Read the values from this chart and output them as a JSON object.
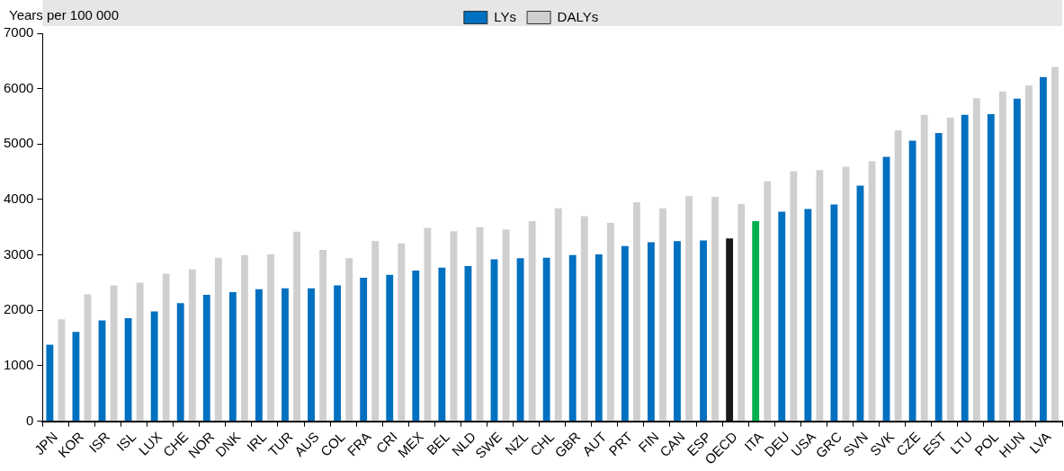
{
  "chart_data": {
    "type": "bar",
    "ylabel": "Years per 100 000",
    "categories": [
      "JPN",
      "KOR",
      "ISR",
      "ISL",
      "LUX",
      "CHE",
      "NOR",
      "DNK",
      "IRL",
      "TUR",
      "AUS",
      "COL",
      "FRA",
      "CRI",
      "MEX",
      "BEL",
      "NLD",
      "SWE",
      "NZL",
      "CHL",
      "GBR",
      "AUT",
      "PRT",
      "FIN",
      "CAN",
      "ESP",
      "OECD",
      "ITA",
      "DEU",
      "USA",
      "GRC",
      "SVN",
      "SVK",
      "CZE",
      "EST",
      "LTU",
      "POL",
      "HUN",
      "LVA"
    ],
    "series": [
      {
        "name": "LYs",
        "color": "#0070c0",
        "colors": [
          "#0070c0",
          "#0070c0",
          "#0070c0",
          "#0070c0",
          "#0070c0",
          "#0070c0",
          "#0070c0",
          "#0070c0",
          "#0070c0",
          "#0070c0",
          "#0070c0",
          "#0070c0",
          "#0070c0",
          "#0070c0",
          "#0070c0",
          "#0070c0",
          "#0070c0",
          "#0070c0",
          "#0070c0",
          "#0070c0",
          "#0070c0",
          "#0070c0",
          "#0070c0",
          "#0070c0",
          "#0070c0",
          "#0070c0",
          "#1a1a1a",
          "#00b050",
          "#0070c0",
          "#0070c0",
          "#0070c0",
          "#0070c0",
          "#0070c0",
          "#0070c0",
          "#0070c0",
          "#0070c0",
          "#0070c0",
          "#0070c0",
          "#0070c0"
        ],
        "values": [
          1380,
          1610,
          1820,
          1860,
          1980,
          2130,
          2280,
          2330,
          2380,
          2400,
          2400,
          2450,
          2590,
          2640,
          2720,
          2770,
          2800,
          2920,
          2940,
          2950,
          3000,
          3010,
          3160,
          3230,
          3250,
          3260,
          3300,
          3610,
          3780,
          3830,
          3910,
          4250,
          4770,
          5060,
          5200,
          5530,
          5540,
          5820,
          6210
        ]
      },
      {
        "name": "DALYs",
        "color": "#d0cfd0",
        "values": [
          1840,
          2290,
          2450,
          2500,
          2660,
          2740,
          2950,
          3000,
          3010,
          3420,
          3090,
          2940,
          3250,
          3210,
          3490,
          3430,
          3500,
          3460,
          3610,
          3840,
          3700,
          3580,
          3950,
          3840,
          4060,
          4050,
          3920,
          4330,
          4510,
          4530,
          4590,
          4690,
          5250,
          5530,
          5480,
          5830,
          5950,
          6060,
          6390
        ]
      }
    ],
    "ylim": [
      0,
      7000
    ],
    "yticks": [
      0,
      1000,
      2000,
      3000,
      4000,
      5000,
      6000,
      7000
    ],
    "grid": false,
    "legend": "top"
  }
}
